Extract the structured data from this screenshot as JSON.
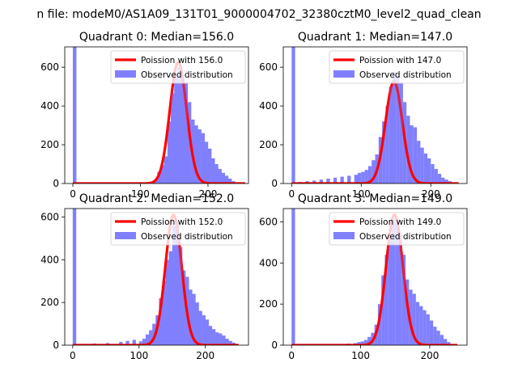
{
  "figure": {
    "suptitle": "n file: modeM0/AS1A09_131T01_9000004702_32380cztM0_level2_quad_clean"
  },
  "colors": {
    "hist": "#8080ff",
    "poisson": "#ff0000",
    "poisson_overlay": "#ff9a9a"
  },
  "chart_data": [
    {
      "type": "bar",
      "title": "Quadrant 0: Median=156.0",
      "median": 156.0,
      "xlim": [
        -12,
        260
      ],
      "ylim": [
        0,
        705
      ],
      "xticks": [
        0,
        100,
        200
      ],
      "yticks": [
        0,
        200,
        400,
        600
      ],
      "legend_position": "top-right",
      "legend": [
        "Poission with 156.0",
        "Observed distribution"
      ],
      "hist_bin_width": 5.3,
      "hist": [
        [
          0,
          705
        ],
        [
          5,
          3
        ],
        [
          110,
          3
        ],
        [
          115,
          8
        ],
        [
          120,
          20
        ],
        [
          125,
          60
        ],
        [
          130,
          95
        ],
        [
          135,
          140
        ],
        [
          140,
          320
        ],
        [
          145,
          465
        ],
        [
          150,
          550
        ],
        [
          155,
          600
        ],
        [
          160,
          560
        ],
        [
          165,
          520
        ],
        [
          170,
          420
        ],
        [
          175,
          330
        ],
        [
          180,
          300
        ],
        [
          185,
          280
        ],
        [
          190,
          260
        ],
        [
          195,
          215
        ],
        [
          200,
          180
        ],
        [
          205,
          130
        ],
        [
          210,
          100
        ],
        [
          215,
          75
        ],
        [
          220,
          55
        ],
        [
          225,
          40
        ],
        [
          230,
          25
        ],
        [
          235,
          12
        ],
        [
          240,
          5
        ]
      ],
      "poisson_scale": 625,
      "poisson_sigma": 12.5,
      "curve_xrange": [
        0,
        255
      ]
    },
    {
      "type": "bar",
      "title": "Quadrant 1: Median=147.0",
      "median": 147.0,
      "xlim": [
        -12,
        252
      ],
      "ylim": [
        0,
        705
      ],
      "xticks": [
        0,
        100,
        200
      ],
      "yticks": [
        0,
        200,
        400,
        600
      ],
      "legend_position": "top-right",
      "legend": [
        "Poission with 147.0",
        "Observed distribution"
      ],
      "hist_bin_width": 5.0,
      "hist": [
        [
          0,
          705
        ],
        [
          10,
          8
        ],
        [
          20,
          12
        ],
        [
          30,
          15
        ],
        [
          40,
          20
        ],
        [
          50,
          25
        ],
        [
          60,
          30
        ],
        [
          70,
          35
        ],
        [
          80,
          40
        ],
        [
          90,
          45
        ],
        [
          95,
          55
        ],
        [
          100,
          60
        ],
        [
          105,
          70
        ],
        [
          110,
          90
        ],
        [
          115,
          120
        ],
        [
          120,
          150
        ],
        [
          125,
          240
        ],
        [
          130,
          320
        ],
        [
          135,
          400
        ],
        [
          140,
          500
        ],
        [
          145,
          575
        ],
        [
          150,
          560
        ],
        [
          155,
          520
        ],
        [
          160,
          420
        ],
        [
          165,
          350
        ],
        [
          170,
          300
        ],
        [
          175,
          290
        ],
        [
          180,
          220
        ],
        [
          185,
          185
        ],
        [
          190,
          155
        ],
        [
          195,
          130
        ],
        [
          200,
          100
        ],
        [
          205,
          75
        ],
        [
          210,
          50
        ],
        [
          215,
          30
        ],
        [
          220,
          20
        ],
        [
          225,
          12
        ],
        [
          230,
          6
        ]
      ],
      "poisson_scale": 525,
      "poisson_sigma": 12.1,
      "curve_xrange": [
        0,
        240
      ]
    },
    {
      "type": "bar",
      "title": "Quadrant 2: Median=152.0",
      "median": 152.0,
      "xlim": [
        -12,
        265
      ],
      "ylim": [
        0,
        640
      ],
      "xticks": [
        0,
        100,
        200
      ],
      "yticks": [
        0,
        200,
        400,
        600
      ],
      "legend_position": "top-right",
      "legend": [
        "Poission with 152.0",
        "Observed distribution"
      ],
      "hist_bin_width": 5.3,
      "hist": [
        [
          0,
          640
        ],
        [
          10,
          3
        ],
        [
          30,
          8
        ],
        [
          50,
          10
        ],
        [
          70,
          15
        ],
        [
          80,
          20
        ],
        [
          90,
          25
        ],
        [
          100,
          18
        ],
        [
          105,
          30
        ],
        [
          110,
          50
        ],
        [
          115,
          70
        ],
        [
          120,
          100
        ],
        [
          125,
          140
        ],
        [
          130,
          220
        ],
        [
          135,
          300
        ],
        [
          140,
          400
        ],
        [
          145,
          440
        ],
        [
          150,
          560
        ],
        [
          155,
          580
        ],
        [
          160,
          460
        ],
        [
          165,
          350
        ],
        [
          170,
          320
        ],
        [
          175,
          260
        ],
        [
          180,
          240
        ],
        [
          185,
          200
        ],
        [
          190,
          160
        ],
        [
          195,
          140
        ],
        [
          200,
          120
        ],
        [
          205,
          90
        ],
        [
          210,
          75
        ],
        [
          215,
          60
        ],
        [
          220,
          55
        ],
        [
          225,
          45
        ],
        [
          230,
          30
        ],
        [
          235,
          20
        ],
        [
          240,
          12
        ],
        [
          245,
          6
        ]
      ],
      "poisson_scale": 610,
      "poisson_sigma": 12.3,
      "curve_xrange": [
        0,
        250
      ]
    },
    {
      "type": "bar",
      "title": "Quadrant 3: Median=149.0",
      "median": 149.0,
      "xlim": [
        -12,
        254
      ],
      "ylim": [
        0,
        665
      ],
      "xticks": [
        0,
        100,
        200
      ],
      "yticks": [
        0,
        200,
        400,
        600
      ],
      "legend_position": "top-right",
      "legend": [
        "Poission with 149.0",
        "Observed distribution"
      ],
      "hist_bin_width": 5.0,
      "hist": [
        [
          0,
          665
        ],
        [
          5,
          3
        ],
        [
          30,
          3
        ],
        [
          60,
          5
        ],
        [
          80,
          8
        ],
        [
          90,
          10
        ],
        [
          95,
          15
        ],
        [
          100,
          18
        ],
        [
          105,
          25
        ],
        [
          110,
          40
        ],
        [
          115,
          60
        ],
        [
          120,
          100
        ],
        [
          125,
          200
        ],
        [
          130,
          340
        ],
        [
          135,
          440
        ],
        [
          140,
          520
        ],
        [
          145,
          620
        ],
        [
          150,
          610
        ],
        [
          155,
          540
        ],
        [
          160,
          440
        ],
        [
          165,
          320
        ],
        [
          170,
          270
        ],
        [
          175,
          250
        ],
        [
          180,
          210
        ],
        [
          185,
          190
        ],
        [
          190,
          170
        ],
        [
          195,
          150
        ],
        [
          200,
          120
        ],
        [
          205,
          90
        ],
        [
          210,
          70
        ],
        [
          215,
          50
        ],
        [
          220,
          30
        ],
        [
          225,
          15
        ],
        [
          230,
          5
        ]
      ],
      "poisson_scale": 635,
      "poisson_sigma": 12.2,
      "curve_xrange": [
        0,
        240
      ]
    }
  ]
}
